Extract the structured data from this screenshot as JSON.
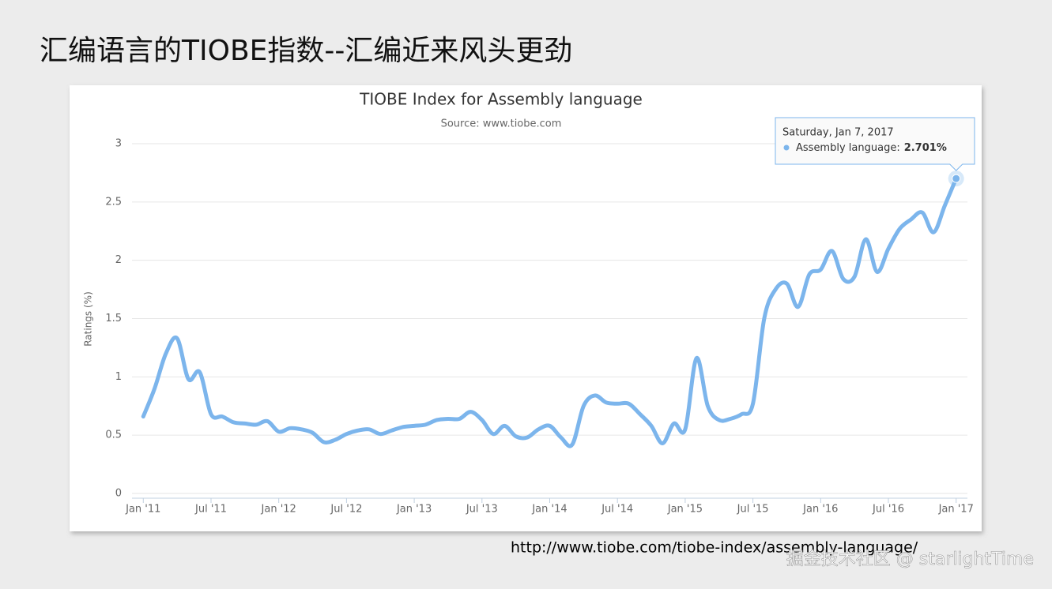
{
  "slide_title": "汇编语言的TIOBE指数--汇编近来风头更劲",
  "chart_data": {
    "type": "line",
    "title": "TIOBE Index for Assembly language",
    "subtitle": "Source: www.tiobe.com",
    "y_label": "Ratings (%)",
    "x": [
      "2011-01",
      "2011-02",
      "2011-03",
      "2011-04",
      "2011-05",
      "2011-06",
      "2011-07",
      "2011-08",
      "2011-09",
      "2011-10",
      "2011-11",
      "2011-12",
      "2012-01",
      "2012-02",
      "2012-03",
      "2012-04",
      "2012-05",
      "2012-06",
      "2012-07",
      "2012-08",
      "2012-09",
      "2012-10",
      "2012-11",
      "2012-12",
      "2013-01",
      "2013-02",
      "2013-03",
      "2013-04",
      "2013-05",
      "2013-06",
      "2013-07",
      "2013-08",
      "2013-09",
      "2013-10",
      "2013-11",
      "2013-12",
      "2014-01",
      "2014-02",
      "2014-03",
      "2014-04",
      "2014-05",
      "2014-06",
      "2014-07",
      "2014-08",
      "2014-09",
      "2014-10",
      "2014-11",
      "2014-12",
      "2015-01",
      "2015-02",
      "2015-03",
      "2015-04",
      "2015-05",
      "2015-06",
      "2015-07",
      "2015-08",
      "2015-09",
      "2015-10",
      "2015-11",
      "2015-12",
      "2016-01",
      "2016-02",
      "2016-03",
      "2016-04",
      "2016-05",
      "2016-06",
      "2016-07",
      "2016-08",
      "2016-09",
      "2016-10",
      "2016-11",
      "2016-12",
      "2017-01"
    ],
    "series": [
      {
        "name": "Assembly language",
        "color": "#7cb5ec",
        "values": [
          0.66,
          0.9,
          1.2,
          1.33,
          0.98,
          1.04,
          0.68,
          0.66,
          0.61,
          0.6,
          0.59,
          0.62,
          0.53,
          0.56,
          0.55,
          0.52,
          0.44,
          0.46,
          0.51,
          0.54,
          0.55,
          0.51,
          0.54,
          0.57,
          0.58,
          0.59,
          0.63,
          0.64,
          0.64,
          0.7,
          0.63,
          0.51,
          0.58,
          0.49,
          0.48,
          0.55,
          0.58,
          0.48,
          0.42,
          0.75,
          0.84,
          0.78,
          0.77,
          0.77,
          0.68,
          0.58,
          0.43,
          0.6,
          0.55,
          1.16,
          0.75,
          0.63,
          0.64,
          0.68,
          0.77,
          1.5,
          1.75,
          1.8,
          1.6,
          1.88,
          1.92,
          2.08,
          1.84,
          1.86,
          2.18,
          1.9,
          2.1,
          2.27,
          2.35,
          2.41,
          2.24,
          2.47,
          2.701
        ]
      }
    ],
    "ylim": [
      0,
      3
    ],
    "yticks": [
      0,
      0.5,
      1,
      1.5,
      2,
      2.5,
      3
    ],
    "xlim": [
      "2010-12",
      "2017-02"
    ],
    "xticks": [
      {
        "value": "2011-01",
        "label": "Jan '11"
      },
      {
        "value": "2011-07",
        "label": "Jul '11"
      },
      {
        "value": "2012-01",
        "label": "Jan '12"
      },
      {
        "value": "2012-07",
        "label": "Jul '12"
      },
      {
        "value": "2013-01",
        "label": "Jan '13"
      },
      {
        "value": "2013-07",
        "label": "Jul '13"
      },
      {
        "value": "2014-01",
        "label": "Jan '14"
      },
      {
        "value": "2014-07",
        "label": "Jul '14"
      },
      {
        "value": "2015-01",
        "label": "Jan '15"
      },
      {
        "value": "2015-07",
        "label": "Jul '15"
      },
      {
        "value": "2016-01",
        "label": "Jan '16"
      },
      {
        "value": "2016-07",
        "label": "Jul '16"
      },
      {
        "value": "2017-01",
        "label": "Jan '17"
      }
    ],
    "grid": true,
    "tooltip": {
      "date": "Saturday, Jan 7, 2017",
      "series_label": "Assembly language:",
      "value_label": "2.701%"
    }
  },
  "url": "http://www.tiobe.com/tiobe-index/assembly-language/",
  "watermark": "掘金技术社区 @ starlightTime"
}
